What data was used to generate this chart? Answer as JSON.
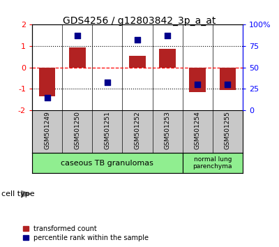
{
  "title": "GDS4256 / g12803842_3p_a_at",
  "samples": [
    "GSM501249",
    "GSM501250",
    "GSM501251",
    "GSM501252",
    "GSM501253",
    "GSM501254",
    "GSM501255"
  ],
  "red_bars": [
    -1.35,
    0.95,
    -0.02,
    0.55,
    0.88,
    -1.15,
    -1.05
  ],
  "blue_dots_pct": [
    15,
    87,
    33,
    82,
    87,
    30,
    30
  ],
  "ylim_left": [
    -2,
    2
  ],
  "ylim_right": [
    0,
    100
  ],
  "yticks_left": [
    -2,
    -1,
    0,
    1,
    2
  ],
  "yticks_right": [
    0,
    25,
    50,
    75,
    100
  ],
  "bar_color": "#B22222",
  "dot_color": "#00008B",
  "bar_width": 0.55,
  "dot_size": 28,
  "legend_red": "transformed count",
  "legend_blue": "percentile rank within the sample",
  "cell_type_label": "cell type",
  "bg_color_sample_labels": "#C8C8C8",
  "cell_group1_label": "caseous TB granulomas",
  "cell_group2_label": "normal lung\nparenchyma",
  "cell_color": "#90EE90"
}
